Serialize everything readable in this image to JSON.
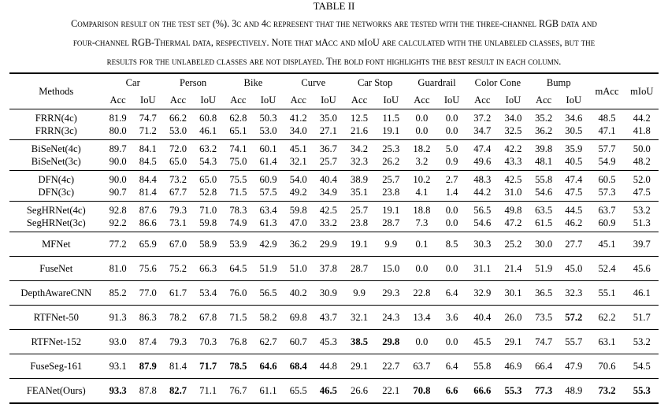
{
  "table_label": "TABLE II",
  "caption_lines": [
    "Comparison result on the test set (%). 3c and 4c represent that the networks are tested with the three-channel RGB data and",
    "four-channel RGB-Thermal data, respectively. Note that mAcc and mIoU are calculated with the unlabeled classes, but the",
    "results for the unlabeled classes are not displayed. The bold font highlights the best result in each column."
  ],
  "header": {
    "methods": "Methods",
    "classes": [
      "Car",
      "Person",
      "Bike",
      "Curve",
      "Car Stop",
      "Guardrail",
      "Color Cone",
      "Bump"
    ],
    "acc": "Acc",
    "iou": "IoU",
    "macc": "mAcc",
    "miou": "mIoU"
  },
  "groups": [
    {
      "rows": [
        {
          "method": "FRRN(4c)",
          "values": [
            "81.9",
            "74.7",
            "66.2",
            "60.8",
            "62.8",
            "50.3",
            "41.2",
            "35.0",
            "12.5",
            "11.5",
            "0.0",
            "0.0",
            "37.2",
            "34.0",
            "35.2",
            "34.6",
            "48.5",
            "44.2"
          ],
          "bold": []
        },
        {
          "method": "FRRN(3c)",
          "values": [
            "80.0",
            "71.2",
            "53.0",
            "46.1",
            "65.1",
            "53.0",
            "34.0",
            "27.1",
            "21.6",
            "19.1",
            "0.0",
            "0.0",
            "34.7",
            "32.5",
            "36.2",
            "30.5",
            "47.1",
            "41.8"
          ],
          "bold": []
        }
      ]
    },
    {
      "rows": [
        {
          "method": "BiSeNet(4c)",
          "values": [
            "89.7",
            "84.1",
            "72.0",
            "63.2",
            "74.1",
            "60.1",
            "45.1",
            "36.7",
            "34.2",
            "25.3",
            "18.2",
            "5.0",
            "47.4",
            "42.2",
            "39.8",
            "35.9",
            "57.7",
            "50.0"
          ],
          "bold": []
        },
        {
          "method": "BiSeNet(3c)",
          "values": [
            "90.0",
            "84.5",
            "65.0",
            "54.3",
            "75.0",
            "61.4",
            "32.1",
            "25.7",
            "32.3",
            "26.2",
            "3.2",
            "0.9",
            "49.6",
            "43.3",
            "48.1",
            "40.5",
            "54.9",
            "48.2"
          ],
          "bold": []
        }
      ]
    },
    {
      "rows": [
        {
          "method": "DFN(4c)",
          "values": [
            "90.0",
            "84.4",
            "73.2",
            "65.0",
            "75.5",
            "60.9",
            "54.0",
            "40.4",
            "38.9",
            "25.7",
            "10.2",
            "2.7",
            "48.3",
            "42.5",
            "55.8",
            "47.4",
            "60.5",
            "52.0"
          ],
          "bold": []
        },
        {
          "method": "DFN(3c)",
          "values": [
            "90.7",
            "81.4",
            "67.7",
            "52.8",
            "71.5",
            "57.5",
            "49.2",
            "34.9",
            "35.1",
            "23.8",
            "4.1",
            "1.4",
            "44.2",
            "31.0",
            "54.6",
            "47.5",
            "57.3",
            "47.5"
          ],
          "bold": []
        }
      ]
    },
    {
      "rows": [
        {
          "method": "SegHRNet(4c)",
          "values": [
            "92.8",
            "87.6",
            "79.3",
            "71.0",
            "78.3",
            "63.4",
            "59.8",
            "42.5",
            "25.7",
            "19.1",
            "18.8",
            "0.0",
            "56.5",
            "49.8",
            "63.5",
            "44.5",
            "63.7",
            "53.2"
          ],
          "bold": []
        },
        {
          "method": "SegHRNet(3c)",
          "values": [
            "92.2",
            "86.6",
            "73.1",
            "59.8",
            "74.9",
            "61.3",
            "47.0",
            "33.2",
            "23.8",
            "28.7",
            "7.3",
            "0.0",
            "54.6",
            "47.2",
            "61.5",
            "46.2",
            "60.9",
            "51.3"
          ],
          "bold": []
        }
      ]
    },
    {
      "rows": [
        {
          "method": "MFNet",
          "values": [
            "77.2",
            "65.9",
            "67.0",
            "58.9",
            "53.9",
            "42.9",
            "36.2",
            "29.9",
            "19.1",
            "9.9",
            "0.1",
            "8.5",
            "30.3",
            "25.2",
            "30.0",
            "27.7",
            "45.1",
            "39.7"
          ],
          "bold": []
        }
      ]
    },
    {
      "rows": [
        {
          "method": "FuseNet",
          "values": [
            "81.0",
            "75.6",
            "75.2",
            "66.3",
            "64.5",
            "51.9",
            "51.0",
            "37.8",
            "28.7",
            "15.0",
            "0.0",
            "0.0",
            "31.1",
            "21.4",
            "51.9",
            "45.0",
            "52.4",
            "45.6"
          ],
          "bold": []
        }
      ]
    },
    {
      "rows": [
        {
          "method": "DepthAwareCNN",
          "values": [
            "85.2",
            "77.0",
            "61.7",
            "53.4",
            "76.0",
            "56.5",
            "40.2",
            "30.9",
            "9.9",
            "29.3",
            "22.8",
            "6.4",
            "32.9",
            "30.1",
            "36.5",
            "32.3",
            "55.1",
            "46.1"
          ],
          "bold": []
        }
      ]
    },
    {
      "rows": [
        {
          "method": "RTFNet-50",
          "values": [
            "91.3",
            "86.3",
            "78.2",
            "67.8",
            "71.5",
            "58.2",
            "69.8",
            "43.7",
            "32.1",
            "24.3",
            "13.4",
            "3.6",
            "40.4",
            "26.0",
            "73.5",
            "57.2",
            "62.2",
            "51.7"
          ],
          "bold": [
            15
          ]
        }
      ]
    },
    {
      "rows": [
        {
          "method": "RTFNet-152",
          "values": [
            "93.0",
            "87.4",
            "79.3",
            "70.3",
            "76.8",
            "62.7",
            "60.7",
            "45.3",
            "38.5",
            "29.8",
            "0.0",
            "0.0",
            "45.5",
            "29.1",
            "74.7",
            "55.7",
            "63.1",
            "53.2"
          ],
          "bold": [
            8,
            9
          ]
        }
      ]
    },
    {
      "rows": [
        {
          "method": "FuseSeg-161",
          "values": [
            "93.1",
            "87.9",
            "81.4",
            "71.7",
            "78.5",
            "64.6",
            "68.4",
            "44.8",
            "29.1",
            "22.7",
            "63.7",
            "6.4",
            "55.8",
            "46.9",
            "66.4",
            "47.9",
            "70.6",
            "54.5"
          ],
          "bold": [
            1,
            3,
            4,
            5,
            6
          ]
        }
      ]
    },
    {
      "rows": [
        {
          "method": "FEANet(Ours)",
          "values": [
            "93.3",
            "87.8",
            "82.7",
            "71.1",
            "76.7",
            "61.1",
            "65.5",
            "46.5",
            "26.6",
            "22.1",
            "70.8",
            "6.6",
            "66.6",
            "55.3",
            "77.3",
            "48.9",
            "73.2",
            "55.3"
          ],
          "bold": [
            0,
            2,
            7,
            10,
            11,
            12,
            13,
            14,
            16,
            17
          ]
        }
      ]
    }
  ]
}
